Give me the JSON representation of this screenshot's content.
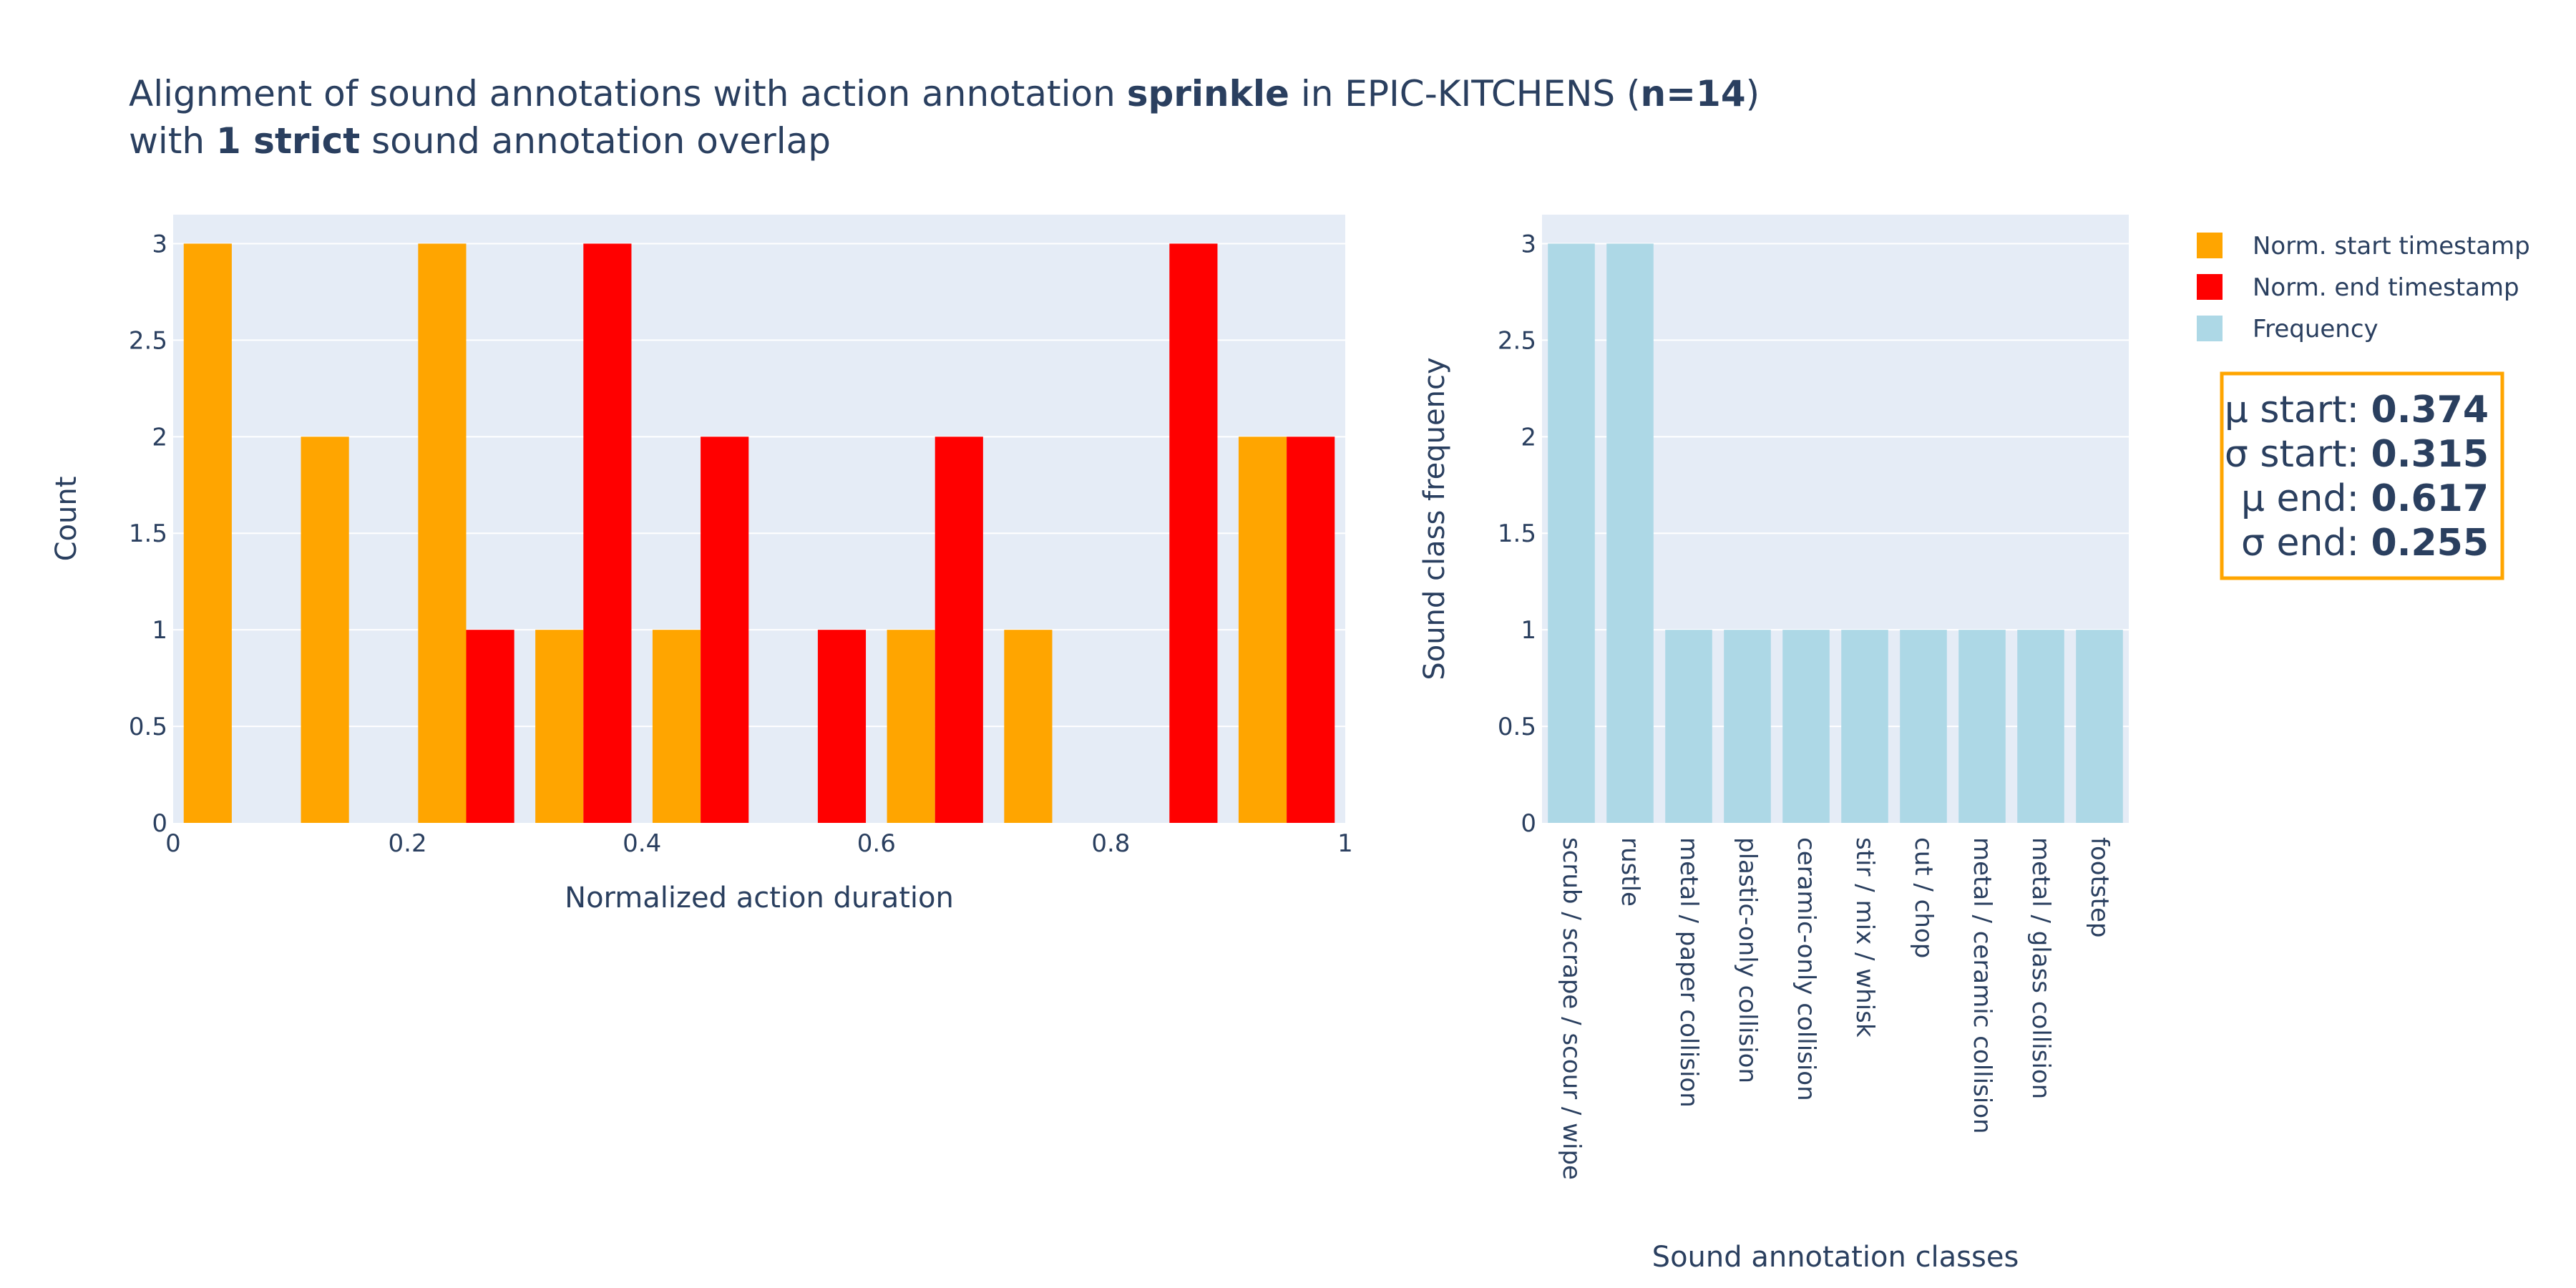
{
  "title": {
    "line1_pre": "Alignment of sound annotations with action annotation ",
    "line1_action": "sprinkle",
    "line1_mid": " in EPIC-KITCHENS (",
    "line1_n": "n=14",
    "line1_post": ")",
    "line2_pre": "with ",
    "line2_strict": "1 strict",
    "line2_post": " sound annotation overlap"
  },
  "colors": {
    "start": "#FFA500",
    "end": "#FF0000",
    "frequency": "#ADD8E6",
    "plot_bg": "#E5ECF6",
    "text": "#2A3F5F",
    "grid": "#FFFFFF"
  },
  "legend": {
    "start_label": "Norm. start timestamp",
    "end_label": "Norm. end timestamp",
    "freq_label": "Frequency"
  },
  "stats": {
    "mu_start_label": "μ start: ",
    "mu_start": "0.374",
    "sigma_start_label": "σ start: ",
    "sigma_start": "0.315",
    "mu_end_label": "μ end: ",
    "mu_end": "0.617",
    "sigma_end_label": "σ end: ",
    "sigma_end": "0.255"
  },
  "chart_data": [
    {
      "type": "bar",
      "subtype": "histogram",
      "xlabel": "Normalized action duration",
      "ylabel": "Count",
      "xlim": [
        0,
        1
      ],
      "ylim": [
        0,
        3.15
      ],
      "xticks": [
        "0",
        "0.2",
        "0.4",
        "0.6",
        "0.8",
        "1"
      ],
      "yticks": [
        "0",
        "0.5",
        "1",
        "1.5",
        "2",
        "2.5",
        "3"
      ],
      "bin_width": 0.1,
      "bins_start": [
        0,
        0.1,
        0.2,
        0.3,
        0.4,
        0.5,
        0.6,
        0.7,
        0.8,
        0.9
      ],
      "series": [
        {
          "name": "Norm. start timestamp",
          "values": [
            3,
            2,
            3,
            1,
            1,
            0,
            1,
            1,
            0,
            2
          ]
        },
        {
          "name": "Norm. end timestamp",
          "values": [
            0,
            0,
            1,
            3,
            2,
            1,
            2,
            0,
            3,
            2
          ]
        }
      ]
    },
    {
      "type": "bar",
      "xlabel": "Sound annotation classes",
      "ylabel": "Sound class frequency",
      "ylim": [
        0,
        3.15
      ],
      "yticks": [
        "0",
        "0.5",
        "1",
        "1.5",
        "2",
        "2.5",
        "3"
      ],
      "categories": [
        "scrub / scrape / scour / wipe",
        "rustle",
        "metal / paper collision",
        "plastic-only collision",
        "ceramic-only collision",
        "stir / mix / whisk",
        "cut / chop",
        "metal / ceramic collision",
        "metal / glass collision",
        "footstep"
      ],
      "series": [
        {
          "name": "Frequency",
          "values": [
            3,
            3,
            1,
            1,
            1,
            1,
            1,
            1,
            1,
            1
          ]
        }
      ]
    }
  ]
}
